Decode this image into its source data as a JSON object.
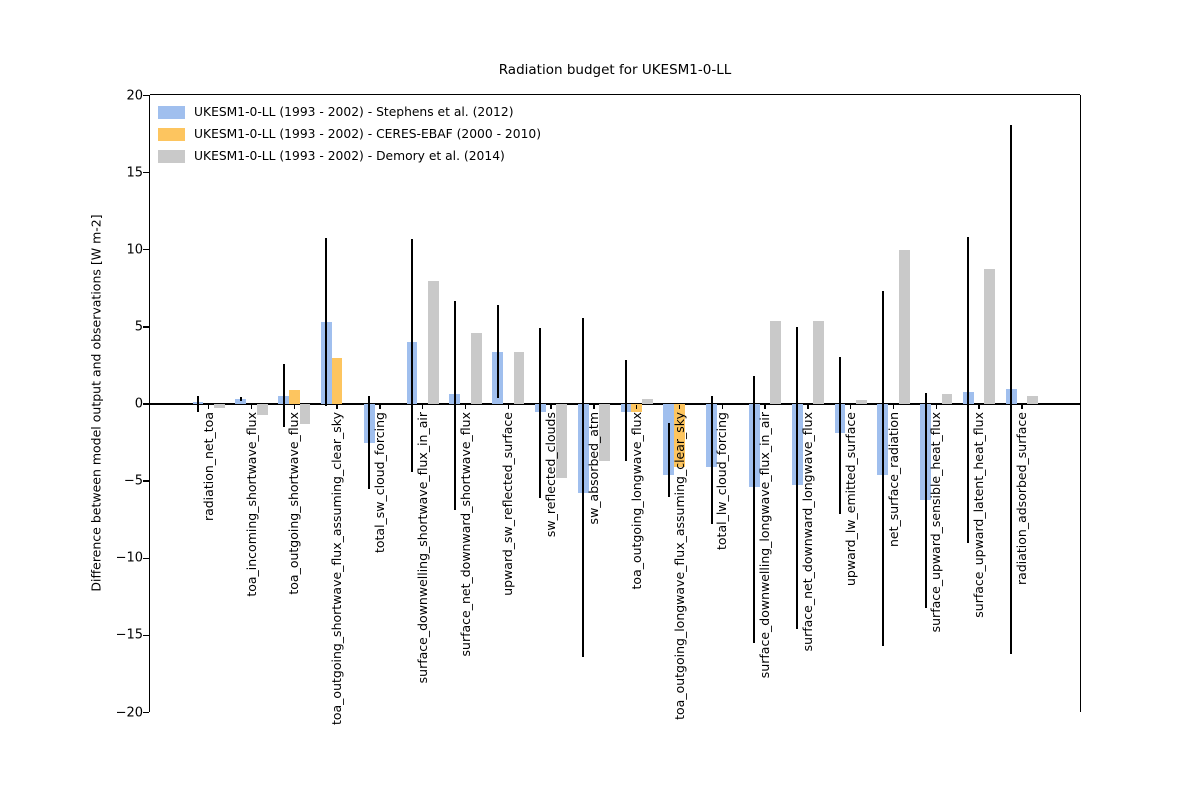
{
  "figure": {
    "title": "Radiation budget for UKESM1-0-LL",
    "background": "#ffffff"
  },
  "chart_data": {
    "type": "bar",
    "title": "Radiation budget for UKESM1-0-LL",
    "xlabel": "",
    "ylabel": "Difference between model output and observations [W m-2]",
    "ylim": [
      -20,
      20
    ],
    "yticks": [
      20,
      15,
      10,
      5,
      0,
      -5,
      -10,
      -15,
      -20
    ],
    "grid": false,
    "legend_position": "upper-left",
    "axis_color": "#000000",
    "categories": [
      "radiation_net_toa",
      "toa_incoming_shortwave_flux",
      "toa_outgoing_shortwave_flux",
      "toa_outgoing_shortwave_flux_assuming_clear_sky",
      "total_sw_cloud_forcing",
      "surface_downwelling_shortwave_flux_in_air",
      "surface_net_downward_shortwave_flux",
      "upward_sw_reflected_surface",
      "sw_reflected_clouds",
      "sw_absorbed_atm",
      "toa_outgoing_longwave_flux",
      "toa_outgoing_longwave_flux_assuming_clear_sky",
      "total_lw_cloud_forcing",
      "surface_downwelling_longwave_flux_in_air",
      "surface_net_downward_longwave_flux",
      "upward_lw_emitted_surface",
      "net_surface_radiation",
      "surface_upward_sensible_heat_flux",
      "surface_upward_latent_heat_flux",
      "radiation_adsorbed_surface"
    ],
    "series": [
      {
        "name": "UKESM1-0-LL (1993 - 2002) - Stephens et al. (2012)",
        "color": "#a0bfee",
        "values": [
          0.1,
          0.3,
          0.55,
          5.3,
          -2.5,
          4.0,
          0.65,
          3.4,
          -0.55,
          -5.8,
          -0.55,
          -4.6,
          -4.1,
          -5.4,
          -5.25,
          -1.9,
          -4.6,
          -6.2,
          0.8,
          0.95
        ]
      },
      {
        "name": "UKESM1-0-LL (1993 - 2002) - CERES-EBAF (2000 - 2010)",
        "color": "#fdc55f",
        "values": [
          null,
          null,
          0.9,
          3.0,
          null,
          null,
          null,
          null,
          null,
          null,
          -0.5,
          -4.1,
          null,
          null,
          null,
          null,
          null,
          null,
          null,
          null
        ]
      },
      {
        "name": "UKESM1-0-LL (1993 - 2002) - Demory et al. (2014)",
        "color": "#c9c9c9",
        "values": [
          -0.25,
          -0.7,
          -1.3,
          null,
          null,
          8.0,
          4.6,
          3.35,
          -4.8,
          -3.7,
          0.3,
          null,
          null,
          5.4,
          5.4,
          0.25,
          10.0,
          0.65,
          8.75,
          0.55
        ]
      }
    ],
    "error_bars": {
      "color": "#000000",
      "ranges": [
        [
          -0.55,
          0.55
        ],
        [
          0.2,
          0.45
        ],
        [
          -1.5,
          2.6
        ],
        [
          -0.1,
          10.75
        ],
        [
          -5.5,
          0.5
        ],
        [
          -4.4,
          10.7
        ],
        [
          -6.9,
          6.65
        ],
        [
          0.4,
          6.4
        ],
        [
          -6.1,
          4.95
        ],
        [
          -16.4,
          5.55
        ],
        [
          -3.7,
          2.85
        ],
        [
          -6.05,
          -1.25
        ],
        [
          -7.8,
          0.5
        ],
        [
          -15.5,
          1.8
        ],
        [
          -14.6,
          5.0
        ],
        [
          -7.1,
          3.05
        ],
        [
          -15.7,
          7.3
        ],
        [
          -13.2,
          0.7
        ],
        [
          -9.0,
          10.8
        ],
        [
          -16.2,
          18.1
        ]
      ]
    }
  }
}
